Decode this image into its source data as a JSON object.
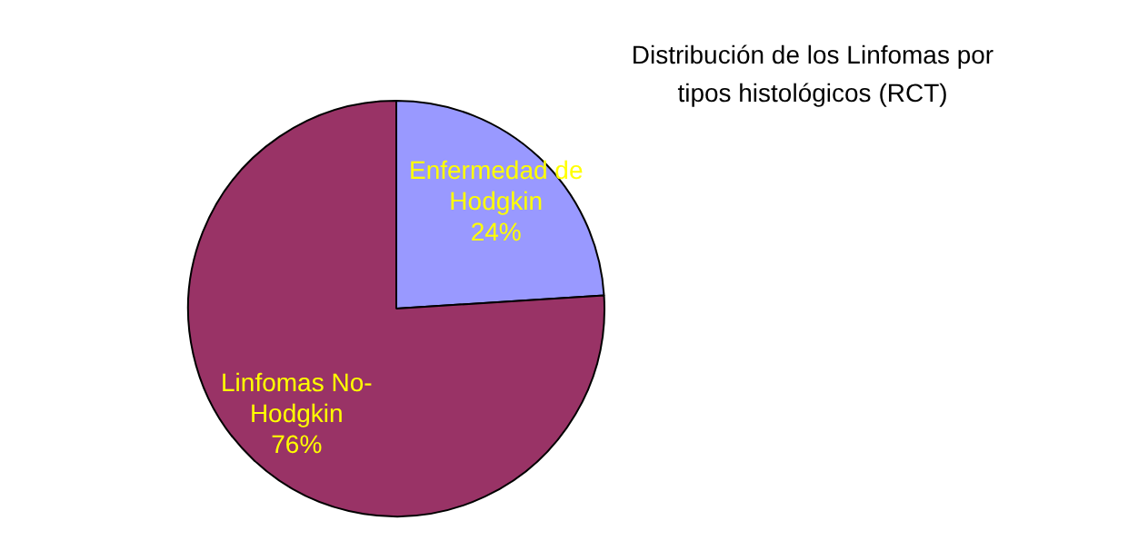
{
  "chart_data": {
    "type": "pie",
    "title": "Distribución de los Linfomas por tipos histológicos (RCT)",
    "categories": [
      "Enfermedad de Hodgkin",
      "Linfomas No-Hodgkin"
    ],
    "values": [
      24,
      76
    ],
    "colors": [
      "#9999ff",
      "#993366"
    ],
    "value_labels": [
      "24%",
      "76%"
    ],
    "legend": false
  }
}
